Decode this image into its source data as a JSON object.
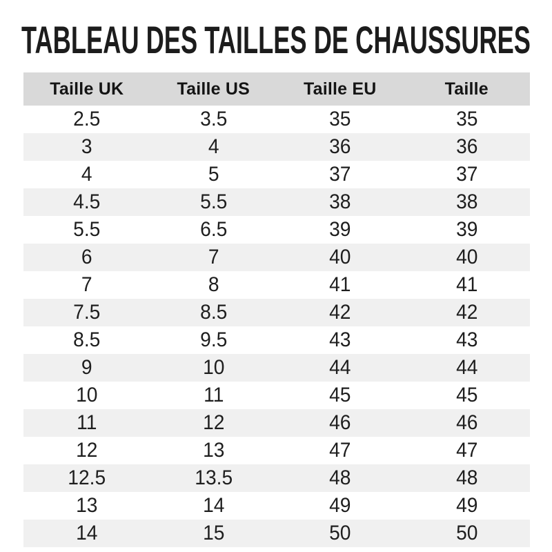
{
  "page": {
    "title": "TABLEAU DES TAILLES DE CHAUSSURES"
  },
  "table": {
    "columns": [
      "Taille UK",
      "Taille US",
      "Taille EU",
      "Taille"
    ],
    "rows": [
      [
        "2.5",
        "3.5",
        "35",
        "35"
      ],
      [
        "3",
        "4",
        "36",
        "36"
      ],
      [
        "4",
        "5",
        "37",
        "37"
      ],
      [
        "4.5",
        "5.5",
        "38",
        "38"
      ],
      [
        "5.5",
        "6.5",
        "39",
        "39"
      ],
      [
        "6",
        "7",
        "40",
        "40"
      ],
      [
        "7",
        "8",
        "41",
        "41"
      ],
      [
        "7.5",
        "8.5",
        "42",
        "42"
      ],
      [
        "8.5",
        "9.5",
        "43",
        "43"
      ],
      [
        "9",
        "10",
        "44",
        "44"
      ],
      [
        "10",
        "11",
        "45",
        "45"
      ],
      [
        "11",
        "12",
        "46",
        "46"
      ],
      [
        "12",
        "13",
        "47",
        "47"
      ],
      [
        "12.5",
        "13.5",
        "48",
        "48"
      ],
      [
        "13",
        "14",
        "49",
        "49"
      ],
      [
        "14",
        "15",
        "50",
        "50"
      ]
    ],
    "colors": {
      "header_bg": "#d9d9d9",
      "stripe_bg": "#f0f0f0",
      "title_text": "#1c1c1c",
      "cell_text": "#1e1e1e"
    }
  },
  "chart_data": {
    "type": "table",
    "title": "TABLEAU DES TAILLES DE CHAUSSURES",
    "columns": [
      "Taille UK",
      "Taille US",
      "Taille EU",
      "Taille"
    ],
    "series": [
      {
        "name": "Taille UK",
        "values": [
          2.5,
          3,
          4,
          4.5,
          5.5,
          6,
          7,
          7.5,
          8.5,
          9,
          10,
          11,
          12,
          12.5,
          13,
          14
        ]
      },
      {
        "name": "Taille US",
        "values": [
          3.5,
          4,
          5,
          5.5,
          6.5,
          7,
          8,
          8.5,
          9.5,
          10,
          11,
          12,
          13,
          13.5,
          14,
          15
        ]
      },
      {
        "name": "Taille EU",
        "values": [
          35,
          36,
          37,
          38,
          39,
          40,
          41,
          42,
          43,
          44,
          45,
          46,
          47,
          48,
          49,
          50
        ]
      },
      {
        "name": "Taille",
        "values": [
          35,
          36,
          37,
          38,
          39,
          40,
          41,
          42,
          43,
          44,
          45,
          46,
          47,
          48,
          49,
          50
        ]
      }
    ],
    "layout_hints": {
      "zebra_striping": true,
      "header_background": "#d9d9d9",
      "stripe_background": "#f0f0f0"
    }
  }
}
